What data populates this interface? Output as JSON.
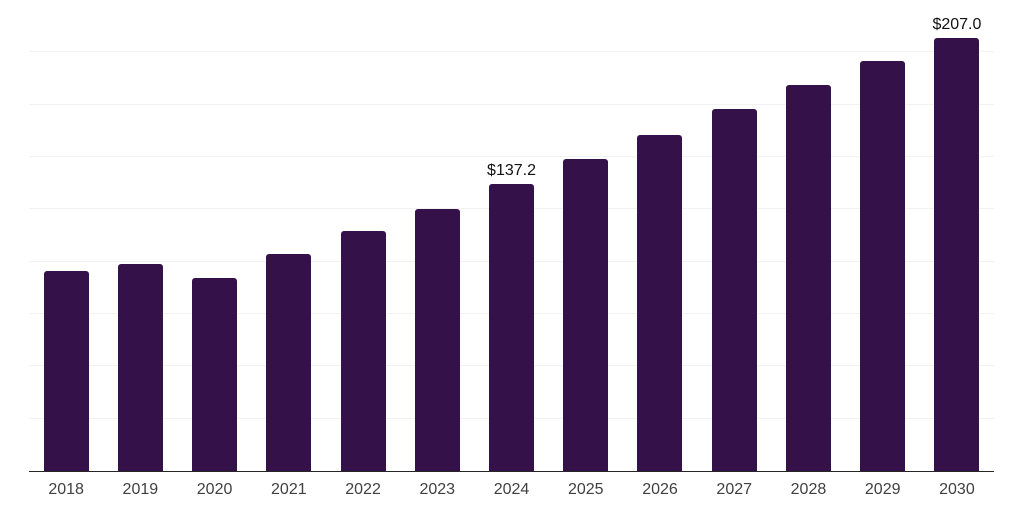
{
  "chart_data": {
    "type": "bar",
    "title": "",
    "xlabel": "",
    "ylabel": "",
    "categories": [
      "2018",
      "2019",
      "2020",
      "2021",
      "2022",
      "2023",
      "2024",
      "2025",
      "2026",
      "2027",
      "2028",
      "2029",
      "2030"
    ],
    "values": [
      95.6,
      98.7,
      92.4,
      103.6,
      114.7,
      125.2,
      137.2,
      148.9,
      160.5,
      172.7,
      184.3,
      195.8,
      207.0
    ],
    "data_labels": [
      {
        "category": "2024",
        "text": "$137.2"
      },
      {
        "category": "2030",
        "text": "$207.0"
      }
    ],
    "ylim": [
      0,
      225
    ],
    "gridline_step": 25,
    "grid": "horizontal",
    "legend_position": "none",
    "y_axis_tick_labels": "none",
    "colors": {
      "bar": "#341149",
      "gridline": "#f2f2f2",
      "axis_line": "#262626",
      "tick_label": "#404040",
      "data_label": "#111111",
      "background": "#ffffff"
    }
  }
}
